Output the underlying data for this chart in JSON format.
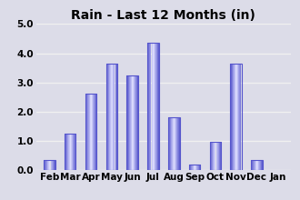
{
  "title": "Rain - Last 12 Months (in)",
  "categories": [
    "Feb",
    "Mar",
    "Apr",
    "May",
    "Jun",
    "Jul",
    "Aug",
    "Sep",
    "Oct",
    "Nov",
    "Dec",
    "Jan"
  ],
  "values": [
    0.33,
    1.23,
    2.63,
    3.65,
    3.25,
    4.35,
    1.8,
    0.2,
    0.97,
    3.65,
    0.33,
    0.0
  ],
  "ylim": [
    0.0,
    5.0
  ],
  "yticks": [
    0.0,
    1.0,
    2.0,
    3.0,
    4.0,
    5.0
  ],
  "bar_edge_color": "#5555cc",
  "bar_center_color": "#e0e0ff",
  "background_color": "#dcdce8",
  "plot_bg_color": "#dcdce8",
  "title_fontsize": 10,
  "tick_fontsize": 7.5,
  "grid_color": "#f0f0f0",
  "bar_width": 0.55
}
